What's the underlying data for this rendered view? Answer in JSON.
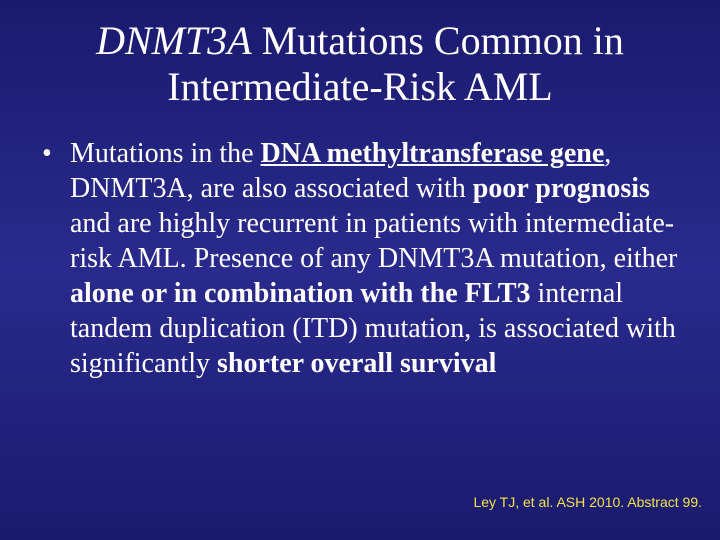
{
  "colors": {
    "background_top": "#1a1a6e",
    "background_mid": "#2a2a8e",
    "background_bottom": "#1a1a6e",
    "text": "#ffffff",
    "citation": "#f4e24a"
  },
  "typography": {
    "title_fontsize_pt": 40,
    "body_fontsize_pt": 28,
    "citation_fontsize_pt": 14,
    "title_font": "Times New Roman",
    "body_font": "Times New Roman",
    "citation_font": "Arial"
  },
  "title": {
    "part_italic": "DNMT3A",
    "part_rest_line1": " Mutations Common in",
    "line2": "Intermediate-Risk AML"
  },
  "bullet": {
    "marker": "•",
    "t1": " Mutations in the ",
    "t2_bold_underline": "DNA methyltransferase gene",
    "t3": ", DNMT3A, are also associated with ",
    "t4_bold": "poor prognosis",
    "t5": " and are highly recurrent in patients with intermediate-risk AML. Presence of any DNMT3A mutation, either ",
    "t6_bold": "alone or in combination with the FLT3",
    "t7": " internal tandem duplication (ITD) mutation, is associated with significantly ",
    "t8_bold": "shorter overall survival"
  },
  "citation": "Ley TJ, et al. ASH 2010. Abstract 99."
}
